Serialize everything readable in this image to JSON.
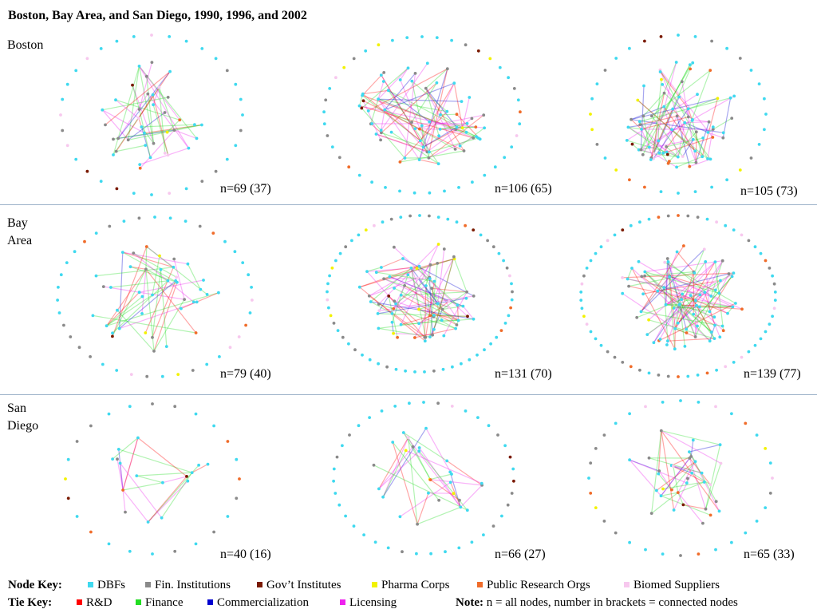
{
  "title": "Boston, Bay Area, and San Diego, 1990, 1996, and 2002",
  "rows": [
    {
      "label_lines": [
        "Boston"
      ],
      "panels": [
        {
          "label": "n=69 (37)",
          "n": 69,
          "connected": 37,
          "seed": 11
        },
        {
          "label": "n=106 (65)",
          "n": 106,
          "connected": 65,
          "seed": 23
        },
        {
          "label": "n=105 (73)",
          "n": 105,
          "connected": 73,
          "seed": 37
        }
      ]
    },
    {
      "label_lines": [
        "Bay",
        "Area"
      ],
      "panels": [
        {
          "label": "n=79 (40)",
          "n": 79,
          "connected": 40,
          "seed": 41
        },
        {
          "label": "n=131 (70)",
          "n": 131,
          "connected": 70,
          "seed": 53
        },
        {
          "label": "n=139 (77)",
          "n": 139,
          "connected": 77,
          "seed": 67
        }
      ]
    },
    {
      "label_lines": [
        "San",
        "Diego"
      ],
      "panels": [
        {
          "label": "n=40 (16)",
          "n": 40,
          "connected": 16,
          "seed": 71
        },
        {
          "label": "n=66 (27)",
          "n": 66,
          "connected": 27,
          "seed": 83
        },
        {
          "label": "n=65 (33)",
          "n": 65,
          "connected": 33,
          "seed": 97
        }
      ]
    }
  ],
  "legend": {
    "node_key_title": "Node Key:",
    "node_types": [
      {
        "label": "DBFs",
        "color": "#3fd9ef"
      },
      {
        "label": "Fin. Institutions",
        "color": "#8a8a8a"
      },
      {
        "label": "Gov’t Institutes",
        "color": "#7a1a00"
      },
      {
        "label": "Pharma Corps",
        "color": "#f2f200"
      },
      {
        "label": "Public Research Orgs",
        "color": "#f06c2a"
      },
      {
        "label": "Biomed Suppliers",
        "color": "#f7c8ee"
      }
    ],
    "tie_key_title": "Tie Key:",
    "tie_types": [
      {
        "label": "R&D",
        "color": "#ff0000"
      },
      {
        "label": "Finance",
        "color": "#22dd22"
      },
      {
        "label": "Commercialization",
        "color": "#0000d0"
      },
      {
        "label": "Licensing",
        "color": "#ee22ee"
      }
    ],
    "note_label": "Note:",
    "note_text": " n = all nodes, number in brackets = connected nodes"
  }
}
